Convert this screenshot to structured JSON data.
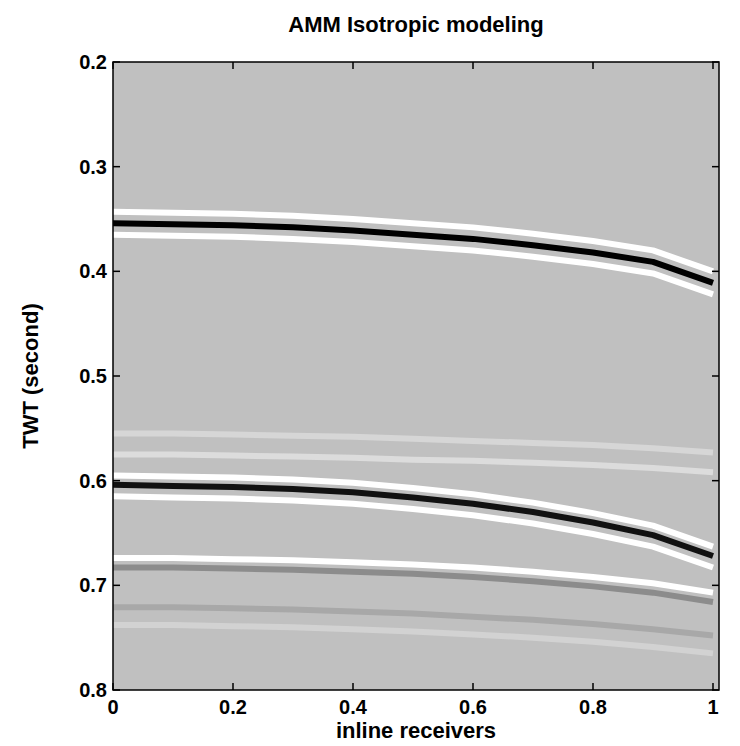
{
  "chart_data": {
    "type": "line",
    "title": "AMM Isotropic modeling",
    "x_label": "inline receivers",
    "y_label": "TWT (second)",
    "x": [
      0,
      0.1,
      0.2,
      0.3,
      0.4,
      0.5,
      0.6,
      0.7,
      0.8,
      0.9,
      1.0
    ],
    "xlim": [
      0,
      1.01
    ],
    "ylim": [
      0.8,
      0.2
    ],
    "xticks": [
      0,
      0.2,
      0.4,
      0.6,
      0.8,
      1
    ],
    "yticks": [
      0.2,
      0.3,
      0.4,
      0.5,
      0.6,
      0.7,
      0.8
    ],
    "grid": false,
    "series": [
      {
        "color": "#d6d6d6",
        "values": [
          0.555,
          0.555,
          0.556,
          0.557,
          0.558,
          0.56,
          0.562,
          0.564,
          0.566,
          0.569,
          0.573
        ]
      },
      {
        "color": "#dcdcdc",
        "values": [
          0.575,
          0.575,
          0.576,
          0.577,
          0.578,
          0.58,
          0.581,
          0.583,
          0.585,
          0.588,
          0.592
        ]
      },
      {
        "color": "#a8a8a8",
        "values": [
          0.721,
          0.721,
          0.722,
          0.723,
          0.725,
          0.727,
          0.73,
          0.733,
          0.737,
          0.742,
          0.748
        ]
      },
      {
        "color": "#d2d2d2",
        "values": [
          0.738,
          0.738,
          0.739,
          0.74,
          0.742,
          0.744,
          0.747,
          0.75,
          0.754,
          0.759,
          0.765
        ]
      },
      {
        "color": "#ffffff",
        "values": [
          0.343,
          0.344,
          0.345,
          0.347,
          0.35,
          0.354,
          0.358,
          0.364,
          0.371,
          0.38,
          0.4
        ]
      },
      {
        "color": "#ffffff",
        "values": [
          0.365,
          0.366,
          0.367,
          0.369,
          0.372,
          0.376,
          0.38,
          0.386,
          0.393,
          0.402,
          0.422
        ]
      },
      {
        "color": "#000000",
        "values": [
          0.354,
          0.355,
          0.356,
          0.358,
          0.361,
          0.365,
          0.369,
          0.375,
          0.382,
          0.391,
          0.411
        ]
      },
      {
        "color": "#ffffff",
        "values": [
          0.595,
          0.596,
          0.597,
          0.599,
          0.602,
          0.607,
          0.613,
          0.621,
          0.631,
          0.643,
          0.663
        ]
      },
      {
        "color": "#ffffff",
        "values": [
          0.615,
          0.616,
          0.617,
          0.619,
          0.622,
          0.627,
          0.633,
          0.641,
          0.651,
          0.663,
          0.683
        ]
      },
      {
        "color": "#111111",
        "values": [
          0.604,
          0.605,
          0.606,
          0.608,
          0.611,
          0.616,
          0.622,
          0.63,
          0.64,
          0.652,
          0.672
        ]
      },
      {
        "color": "#ffffff",
        "values": [
          0.674,
          0.674,
          0.675,
          0.676,
          0.678,
          0.68,
          0.683,
          0.687,
          0.692,
          0.698,
          0.707
        ]
      },
      {
        "color": "#8c8c8c",
        "values": [
          0.683,
          0.683,
          0.684,
          0.685,
          0.687,
          0.689,
          0.692,
          0.696,
          0.701,
          0.707,
          0.716
        ]
      }
    ]
  }
}
